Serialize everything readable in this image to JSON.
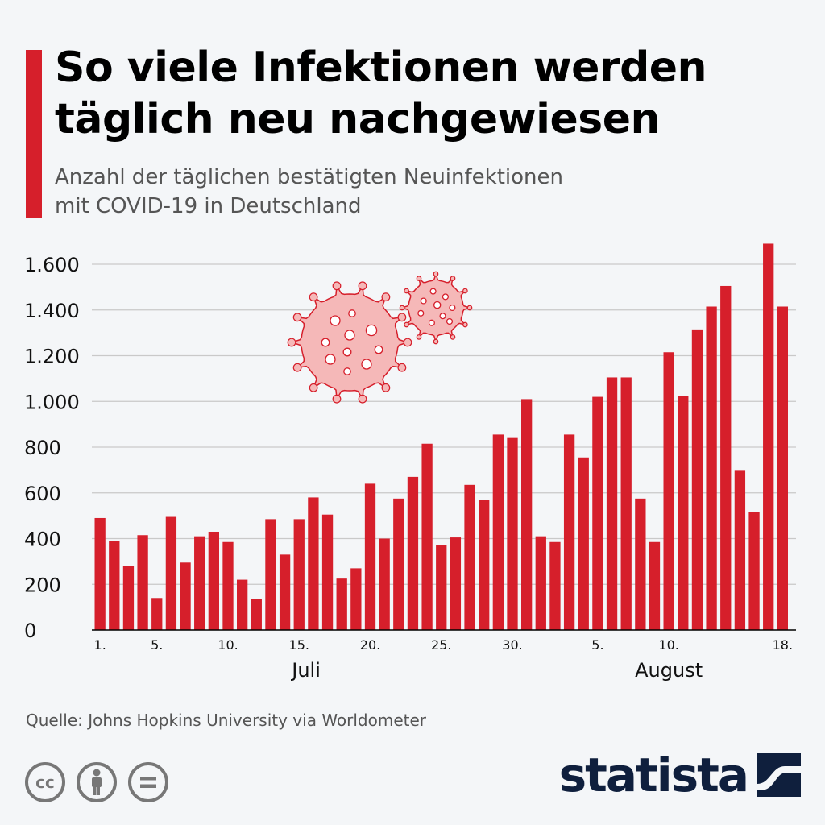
{
  "header": {
    "title_line1": "So viele Infektionen werden",
    "title_line2": "täglich neu nachgewiesen",
    "subtitle_line1": "Anzahl der täglichen bestätigten Neuinfektionen",
    "subtitle_line2": "mit COVID-19 in Deutschland"
  },
  "footer": {
    "source": "Quelle: Johns Hopkins University via Worldometer",
    "brand": "statista",
    "license_icons": [
      "cc-icon",
      "by-person-icon",
      "nd-equals-icon"
    ]
  },
  "decorations": [
    "virus-icon-large",
    "virus-icon-small"
  ],
  "colors": {
    "bar": "#d61f2b",
    "accent": "#d61f2b",
    "brand": "#0f1f3d",
    "virus": "#f5b8b8"
  },
  "chart_data": {
    "type": "bar",
    "title": "So viele Infektionen werden täglich neu nachgewiesen",
    "subtitle": "Anzahl der täglichen bestätigten Neuinfektionen mit COVID-19 in Deutschland",
    "ylim": [
      0,
      1700
    ],
    "yticks": [
      0,
      200,
      400,
      600,
      800,
      1000,
      1200,
      1400,
      1600
    ],
    "ytick_labels": [
      "0",
      "200",
      "400",
      "600",
      "800",
      "1.000",
      "1.200",
      "1.400",
      "1.600"
    ],
    "grid": true,
    "values": [
      490,
      390,
      280,
      415,
      140,
      495,
      295,
      410,
      430,
      385,
      220,
      135,
      485,
      330,
      485,
      580,
      505,
      225,
      270,
      640,
      400,
      575,
      670,
      815,
      370,
      405,
      635,
      570,
      855,
      840,
      1010,
      410,
      385,
      855,
      755,
      1020,
      1105,
      1105,
      575,
      385,
      1215,
      1025,
      1315,
      1415,
      1505,
      700,
      515,
      1690,
      1415
    ],
    "xtick_labels": [
      {
        "index": 0,
        "label": "1."
      },
      {
        "index": 4,
        "label": "5."
      },
      {
        "index": 9,
        "label": "10."
      },
      {
        "index": 14,
        "label": "15."
      },
      {
        "index": 19,
        "label": "20."
      },
      {
        "index": 24,
        "label": "25."
      },
      {
        "index": 29,
        "label": "30."
      },
      {
        "index": 35,
        "label": "5."
      },
      {
        "index": 40,
        "label": "10."
      },
      {
        "index": 48,
        "label": "18."
      }
    ],
    "month_labels": [
      {
        "index": 14.5,
        "label": "Juli"
      },
      {
        "index": 40,
        "label": "August"
      }
    ]
  }
}
